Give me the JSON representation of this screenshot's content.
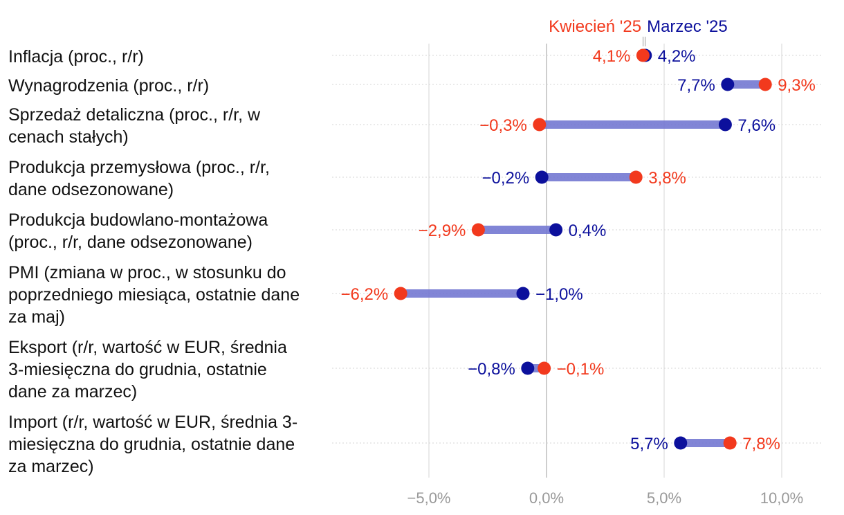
{
  "colors": {
    "march": "#0c109c",
    "april": "#f2391d",
    "connector": "#7478d2",
    "grid": "#d4d4d4",
    "zero": "#bdbdbd",
    "tick": "#999999",
    "label": "#111111"
  },
  "chart_data": {
    "type": "dumbbell",
    "legend": {
      "april": "Kwiecień '25",
      "march": "Marzec '25",
      "placement": "top"
    },
    "x_ticks": [
      {
        "value": -5,
        "label": "−5,0%"
      },
      {
        "value": 0,
        "label": "0,0%"
      },
      {
        "value": 5,
        "label": "5,0%"
      },
      {
        "value": 10,
        "label": "10,0%"
      }
    ],
    "xlim": [
      -9.6,
      11.7
    ],
    "series": [
      {
        "name": "Marzec '25",
        "key": "march"
      },
      {
        "name": "Kwiecień '25",
        "key": "april"
      }
    ],
    "categories": [
      {
        "label": [
          "Inflacja (proc., r/r)"
        ],
        "march": 4.2,
        "march_label": "4,2%",
        "april": 4.1,
        "april_label": "4,1%"
      },
      {
        "label": [
          "Wynagrodzenia (proc., r/r)"
        ],
        "march": 7.7,
        "march_label": "7,7%",
        "april": 9.3,
        "april_label": "9,3%"
      },
      {
        "label": [
          "Sprzedaż detaliczna (proc., r/r, w",
          "cenach stałych)"
        ],
        "march": 7.6,
        "march_label": "7,6%",
        "april": -0.3,
        "april_label": "−0,3%"
      },
      {
        "label": [
          "Produkcja przemysłowa (proc., r/r,",
          "dane odsezonowane)"
        ],
        "march": -0.2,
        "march_label": "−0,2%",
        "april": 3.8,
        "april_label": "3,8%"
      },
      {
        "label": [
          "Produkcja budowlano-montażowa",
          "(proc., r/r, dane odsezonowane)"
        ],
        "march": 0.4,
        "march_label": "0,4%",
        "april": -2.9,
        "april_label": "−2,9%"
      },
      {
        "label": [
          "PMI (zmiana w proc., w stosunku do",
          "poprzedniego miesiąca, ostatnie dane",
          "za maj)"
        ],
        "march": -1.0,
        "march_label": "−1,0%",
        "april": -6.2,
        "april_label": "−6,2%"
      },
      {
        "label": [
          "Eksport (r/r, wartość w EUR, średnia",
          "3-miesięczna do grudnia, ostatnie",
          "dane za marzec)"
        ],
        "march": -0.8,
        "march_label": "−0,8%",
        "april": -0.1,
        "april_label": "−0,1%"
      },
      {
        "label": [
          "Import (r/r, wartość w EUR, średnia 3-",
          "miesięczna do grudnia, ostatnie dane",
          "za marzec)"
        ],
        "march": 5.7,
        "march_label": "5,7%",
        "april": 7.8,
        "april_label": "7,8%"
      }
    ]
  }
}
